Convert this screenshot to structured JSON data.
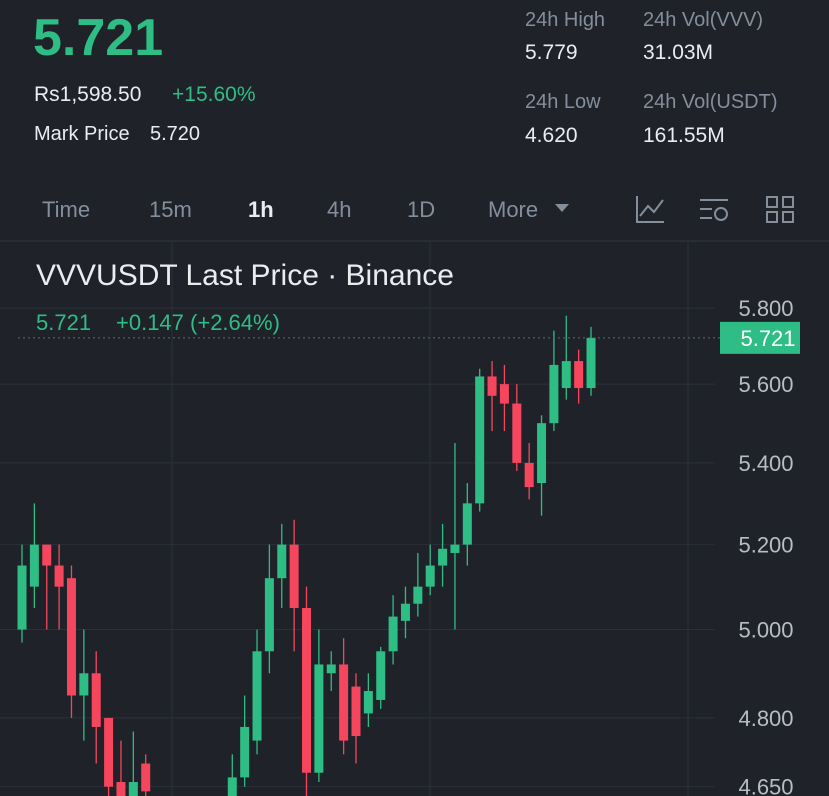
{
  "header": {
    "price": "5.721",
    "local_price": "Rs1,598.50",
    "change": "+15.60%",
    "mark_label": "Mark Price",
    "mark_value": "5.720",
    "stats": [
      {
        "label": "24h High",
        "value": "5.779"
      },
      {
        "label": "24h Vol(VVV)",
        "value": "31.03M"
      },
      {
        "label": "24h Low",
        "value": "4.620"
      },
      {
        "label": "24h Vol(USDT)",
        "value": "161.55M"
      }
    ]
  },
  "tabs": [
    "Time",
    "15m",
    "1h",
    "4h",
    "1D",
    "More"
  ],
  "chart_data": {
    "type": "candlestick",
    "title": "VVVUSDT Last Price · Binance",
    "legend_price": "5.721",
    "legend_change": "+0.147 (+2.64%)",
    "categories": [
      null,
      null,
      null,
      null,
      null,
      null,
      null,
      null,
      null,
      null,
      null,
      null,
      null,
      null,
      null,
      null,
      null,
      null,
      null,
      null,
      null,
      null,
      null,
      null,
      null,
      null,
      null,
      null,
      null,
      null,
      null,
      null,
      null,
      null,
      null,
      null,
      null,
      null,
      null,
      null,
      null,
      null,
      null,
      null,
      null,
      null,
      null
    ],
    "open": [
      5.0,
      5.1,
      5.2,
      5.15,
      5.12,
      4.85,
      4.9,
      4.8,
      4.66,
      4.63,
      4.7,
      null,
      null,
      null,
      null,
      null,
      null,
      4.63,
      4.67,
      4.75,
      4.95,
      5.12,
      5.2,
      5.05,
      4.68,
      4.9,
      4.92,
      4.87,
      4.81,
      4.84,
      4.95,
      5.02,
      5.06,
      5.1,
      5.15,
      5.18,
      5.2,
      5.3,
      5.62,
      5.6,
      5.55,
      5.4,
      5.35,
      5.5,
      5.59,
      5.66,
      5.59
    ],
    "high": [
      5.2,
      5.3,
      5.2,
      5.2,
      5.15,
      5.0,
      4.95,
      4.8,
      4.75,
      4.77,
      4.72,
      null,
      null,
      null,
      null,
      null,
      null,
      4.72,
      4.85,
      5.0,
      5.2,
      5.25,
      5.26,
      5.1,
      5.0,
      4.95,
      4.98,
      4.9,
      4.9,
      4.96,
      5.08,
      5.1,
      5.18,
      5.2,
      5.25,
      5.45,
      5.35,
      5.64,
      5.66,
      5.65,
      5.6,
      5.45,
      5.52,
      5.74,
      5.78,
      5.69,
      5.75
    ],
    "low": [
      4.97,
      5.05,
      5.0,
      5.0,
      4.8,
      4.75,
      4.7,
      4.6,
      4.63,
      4.63,
      4.63,
      null,
      null,
      null,
      null,
      null,
      null,
      4.63,
      4.65,
      4.72,
      4.9,
      5.05,
      4.95,
      4.63,
      4.66,
      4.86,
      4.72,
      4.7,
      4.78,
      4.82,
      4.92,
      4.98,
      5.03,
      5.08,
      5.1,
      5.0,
      5.15,
      5.28,
      5.48,
      5.48,
      5.38,
      5.31,
      5.27,
      5.48,
      5.56,
      5.55,
      5.57
    ],
    "close": [
      5.15,
      5.2,
      5.15,
      5.1,
      4.85,
      4.9,
      4.78,
      4.65,
      4.63,
      4.66,
      4.64,
      null,
      null,
      null,
      null,
      null,
      null,
      4.67,
      4.78,
      4.95,
      5.12,
      5.2,
      5.05,
      4.68,
      4.92,
      4.92,
      4.75,
      4.76,
      4.86,
      4.95,
      5.03,
      5.06,
      5.1,
      5.15,
      5.19,
      5.2,
      5.3,
      5.62,
      5.57,
      5.55,
      5.4,
      5.34,
      5.5,
      5.65,
      5.66,
      5.59,
      5.721
    ],
    "ylim": [
      4.63,
      5.98
    ],
    "log": true,
    "yticks": [
      {
        "value": 5.8,
        "label": "5.800"
      },
      {
        "value": 5.6,
        "label": "5.600"
      },
      {
        "value": 5.4,
        "label": "5.400"
      },
      {
        "value": 5.2,
        "label": "5.200"
      },
      {
        "value": 5.0,
        "label": "5.000"
      },
      {
        "value": 4.8,
        "label": "4.800"
      },
      {
        "value": 4.65,
        "label": "4.650"
      }
    ],
    "grid": true,
    "last_price": 5.721,
    "up_color": "#2ebd85",
    "down_color": "#f6465d"
  }
}
